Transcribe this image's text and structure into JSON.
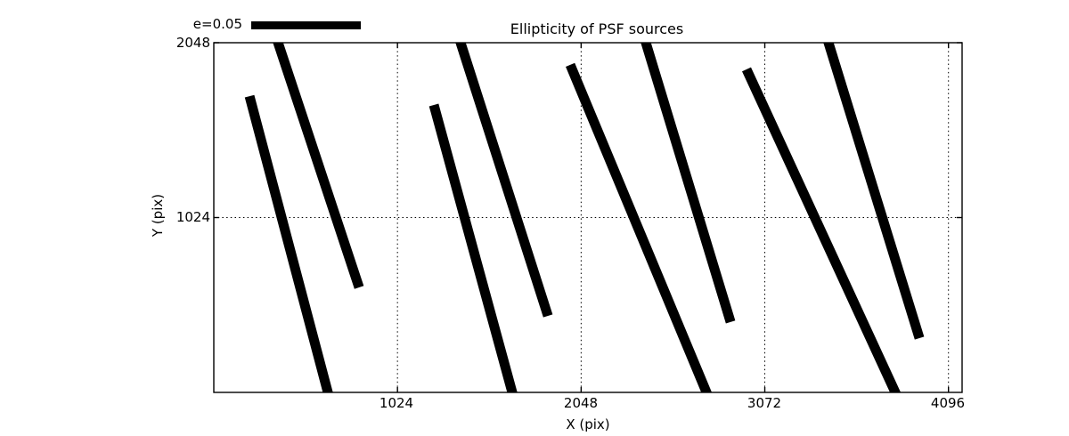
{
  "figure": {
    "background_color": "#ffffff",
    "foreground_color": "#000000"
  },
  "chart_data": {
    "type": "line",
    "subtype": "ellipticity-whisker-plot",
    "title": "Ellipticity of PSF sources",
    "xlabel": "X (pix)",
    "ylabel": "Y (pix)",
    "xlim": [
      0,
      4172
    ],
    "ylim": [
      0,
      2048
    ],
    "xticks": [
      1024,
      2048,
      3072,
      4096
    ],
    "xtick_labels": [
      "1024",
      "2048",
      "3072",
      "4096"
    ],
    "yticks": [
      1024,
      2048
    ],
    "ytick_labels": [
      "1024",
      "2048"
    ],
    "grid": "dotted",
    "grid_color": "#000000",
    "line_color": "#000000",
    "legend": {
      "label": "e=0.05",
      "position": "top-left-outside"
    },
    "segments": [
      {
        "x1": 199,
        "y1": 1735,
        "x2": 636,
        "y2": 0,
        "clipped": "bottom"
      },
      {
        "x1": 358,
        "y1": 2048,
        "x2": 810,
        "y2": 615,
        "clipped": "top"
      },
      {
        "x1": 1227,
        "y1": 1683,
        "x2": 1664,
        "y2": 0,
        "clipped": "bottom"
      },
      {
        "x1": 1376,
        "y1": 2048,
        "x2": 1863,
        "y2": 448,
        "clipped": "top"
      },
      {
        "x1": 1987,
        "y1": 1918,
        "x2": 2747,
        "y2": 0,
        "clipped": "bottom"
      },
      {
        "x1": 2409,
        "y1": 2048,
        "x2": 2881,
        "y2": 412,
        "clipped": "top"
      },
      {
        "x1": 2970,
        "y1": 1892,
        "x2": 3800,
        "y2": 0,
        "clipped": "bottom"
      },
      {
        "x1": 3427,
        "y1": 2048,
        "x2": 3934,
        "y2": 318,
        "clipped": "top"
      }
    ]
  }
}
